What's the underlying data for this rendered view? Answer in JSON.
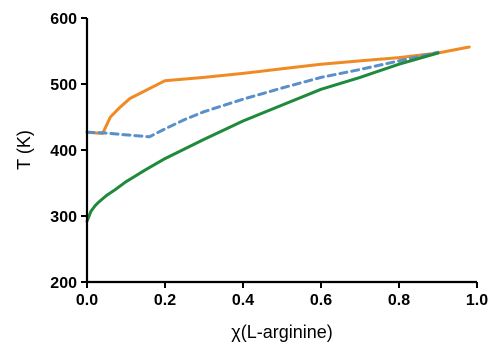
{
  "chart_data": {
    "type": "line",
    "title": "",
    "xlabel": "χ(L-arginine)",
    "ylabel": "T (K)",
    "xlim": [
      0,
      1.0
    ],
    "ylim": [
      200,
      600
    ],
    "xticks": [
      0,
      0.2,
      0.4,
      0.6,
      0.8,
      1.0
    ],
    "xtick_labels": [
      "0.0",
      "0.2",
      "0.4",
      "0.6",
      "0.8",
      "1.0"
    ],
    "yticks": [
      200,
      300,
      400,
      500,
      600
    ],
    "ytick_labels": [
      "200",
      "300",
      "400",
      "500",
      "600"
    ],
    "grid": false,
    "legend": "none",
    "series": [
      {
        "color": "#f08a24",
        "style": "solid",
        "points": [
          [
            0.0,
            427
          ],
          [
            0.04,
            425
          ],
          [
            0.06,
            450
          ],
          [
            0.085,
            465
          ],
          [
            0.11,
            478
          ],
          [
            0.2,
            505
          ],
          [
            0.3,
            510
          ],
          [
            0.4,
            516
          ],
          [
            0.5,
            523
          ],
          [
            0.6,
            530
          ],
          [
            0.7,
            535
          ],
          [
            0.8,
            540
          ],
          [
            0.9,
            547
          ],
          [
            0.98,
            556
          ]
        ]
      },
      {
        "color": "#5b8fc9",
        "style": "dashed",
        "points": [
          [
            0.0,
            427
          ],
          [
            0.04,
            426
          ],
          [
            0.08,
            424
          ],
          [
            0.12,
            422
          ],
          [
            0.16,
            420
          ],
          [
            0.2,
            432
          ],
          [
            0.25,
            446
          ],
          [
            0.3,
            458
          ],
          [
            0.4,
            477
          ],
          [
            0.5,
            494
          ],
          [
            0.6,
            510
          ],
          [
            0.7,
            522
          ],
          [
            0.8,
            535
          ],
          [
            0.9,
            548
          ]
        ]
      },
      {
        "color": "#1f8a3c",
        "style": "solid",
        "points": [
          [
            0.0,
            292
          ],
          [
            0.01,
            307
          ],
          [
            0.02,
            315
          ],
          [
            0.03,
            321
          ],
          [
            0.05,
            331
          ],
          [
            0.07,
            339
          ],
          [
            0.1,
            352
          ],
          [
            0.15,
            370
          ],
          [
            0.2,
            387
          ],
          [
            0.3,
            416
          ],
          [
            0.4,
            444
          ],
          [
            0.5,
            468
          ],
          [
            0.6,
            492
          ],
          [
            0.7,
            510
          ],
          [
            0.8,
            530
          ],
          [
            0.9,
            547
          ]
        ]
      }
    ]
  }
}
